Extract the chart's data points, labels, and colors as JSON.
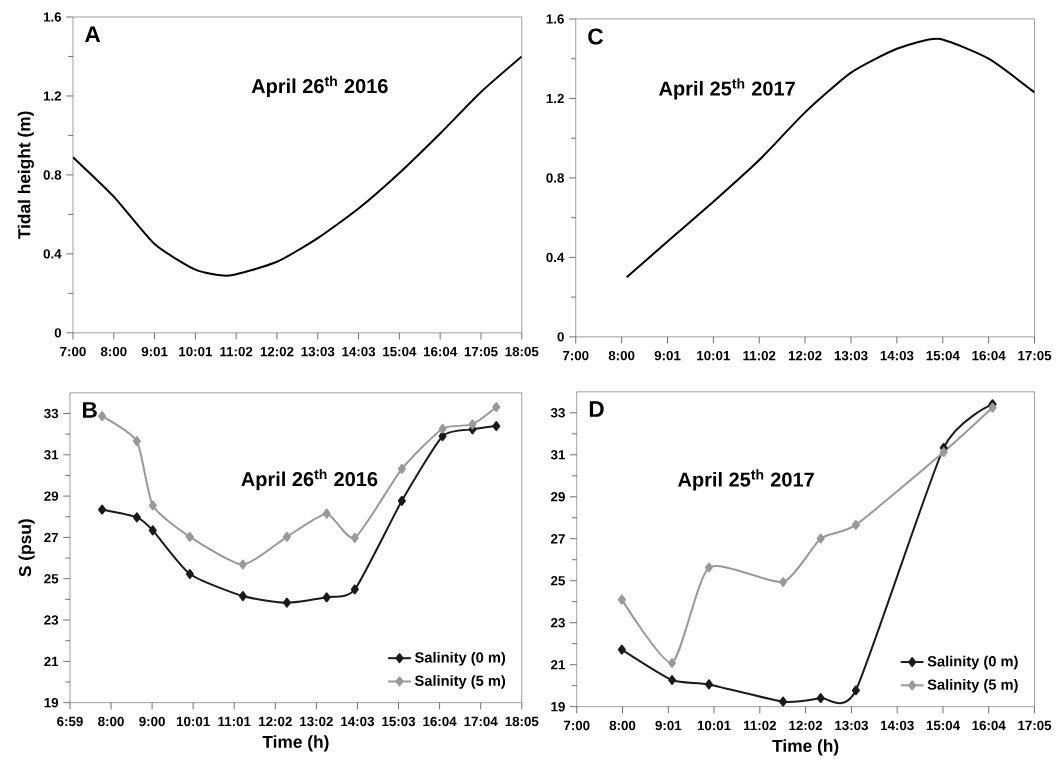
{
  "chart_data": [
    {
      "type": "line",
      "ylabel": "Tidal height (m)",
      "annotations": [
        "A",
        "April 26$^{th}$ 2016"
      ],
      "line_style": "solid",
      "xlim": [
        7,
        18.083
      ],
      "ylim": [
        0,
        1.6
      ],
      "xticks": [
        {
          "value": 7,
          "label": "7:00"
        },
        {
          "value": 8.008,
          "label": "8:00"
        },
        {
          "value": 9.015,
          "label": "9:01"
        },
        {
          "value": 10.023,
          "label": "10:01"
        },
        {
          "value": 11.03,
          "label": "11:02"
        },
        {
          "value": 12.038,
          "label": "12:02"
        },
        {
          "value": 13.045,
          "label": "13:03"
        },
        {
          "value": 14.053,
          "label": "14:03"
        },
        {
          "value": 15.061,
          "label": "15:04"
        },
        {
          "value": 16.068,
          "label": "16:04"
        },
        {
          "value": 17.076,
          "label": "17:05"
        },
        {
          "value": 18.083,
          "label": "18:05"
        }
      ],
      "yticks": [
        0,
        {
          "value": 0.2,
          "label": null
        },
        0.4,
        {
          "value": 0.6,
          "label": null
        },
        0.8,
        {
          "value": 1.0,
          "label": null
        },
        1.2,
        {
          "value": 1.4,
          "label": null
        },
        1.6
      ],
      "series": [
        {
          "color": "#000000",
          "x": [
            7,
            8.008,
            9.015,
            10.023,
            10.86,
            12.038,
            13.045,
            14.053,
            15.061,
            16.068,
            17.076,
            18.083
          ],
          "values": [
            0.89,
            0.69,
            0.45,
            0.32,
            0.29,
            0.36,
            0.48,
            0.63,
            0.81,
            1.01,
            1.22,
            1.4
          ]
        }
      ]
    },
    {
      "type": "line",
      "annotations": [
        "C",
        "April 25$^{th}$ 2017"
      ],
      "line_style": "solid",
      "xlim": [
        7,
        17.083
      ],
      "ylim": [
        0,
        1.6
      ],
      "xticks": [
        {
          "value": 7,
          "label": "7:00"
        },
        {
          "value": 8.008,
          "label": "8:00"
        },
        {
          "value": 9.017,
          "label": "9:01"
        },
        {
          "value": 10.024,
          "label": "10:01"
        },
        {
          "value": 11.033,
          "label": "11:02"
        },
        {
          "value": 12.04,
          "label": "12:02"
        },
        {
          "value": 13.05,
          "label": "13:03"
        },
        {
          "value": 14.058,
          "label": "14:03"
        },
        {
          "value": 15.067,
          "label": "15:04"
        },
        {
          "value": 16.074,
          "label": "16:04"
        },
        {
          "value": 17.083,
          "label": "17:05"
        }
      ],
      "yticks": [
        0,
        {
          "value": 0.2,
          "label": null
        },
        0.4,
        {
          "value": 0.6,
          "label": null
        },
        0.8,
        {
          "value": 1.0,
          "label": null
        },
        1.2,
        {
          "value": 1.4,
          "label": null
        },
        1.6
      ],
      "series": [
        {
          "color": "#000000",
          "x": [
            8.12,
            9.017,
            10.024,
            11.033,
            12.04,
            13.05,
            14.058,
            14.97,
            16.074,
            17.083
          ],
          "values": [
            0.3,
            0.48,
            0.68,
            0.89,
            1.13,
            1.33,
            1.45,
            1.5,
            1.4,
            1.23
          ]
        }
      ]
    },
    {
      "type": "line",
      "xlabel": "Time (h)",
      "ylabel": "S (psu)",
      "annotations": [
        "B",
        "April 26$^{th}$ 2016"
      ],
      "legend": "bottom right",
      "marker": "diamond",
      "line_style": "solid",
      "xlim": [
        6.983,
        18.083
      ],
      "ylim": [
        19,
        34
      ],
      "xticks": [
        {
          "value": 6.983,
          "label": "6:59"
        },
        {
          "value": 7.992,
          "label": "8:00"
        },
        {
          "value": 9.001,
          "label": "9:00"
        },
        {
          "value": 10.01,
          "label": "10:01"
        },
        {
          "value": 11.019,
          "label": "11:01"
        },
        {
          "value": 12.028,
          "label": "12:02"
        },
        {
          "value": 13.037,
          "label": "13:02"
        },
        {
          "value": 14.046,
          "label": "14:03"
        },
        {
          "value": 15.055,
          "label": "15:03"
        },
        {
          "value": 16.064,
          "label": "16:04"
        },
        {
          "value": 17.074,
          "label": "17:04"
        },
        {
          "value": 18.083,
          "label": "18:05"
        }
      ],
      "yticks": [
        19,
        {
          "value": 20,
          "label": null
        },
        21,
        {
          "value": 22,
          "label": null
        },
        23,
        {
          "value": 24,
          "label": null
        },
        25,
        {
          "value": 26,
          "label": null
        },
        27,
        {
          "value": 28,
          "label": null
        },
        29,
        {
          "value": 30,
          "label": null
        },
        31,
        {
          "value": 32,
          "label": null
        },
        33
      ],
      "series": [
        {
          "name": "Salinity (0 m)",
          "color": "#1a1a1a",
          "x": [
            7.772,
            8.627,
            9.018,
            9.929,
            11.231,
            12.313,
            13.29,
            13.981,
            15.137,
            16.138,
            16.872,
            17.457
          ],
          "values": [
            28.35,
            27.97,
            27.34,
            25.23,
            24.16,
            23.84,
            24.1,
            24.48,
            28.77,
            31.9,
            32.23,
            32.39
          ]
        },
        {
          "name": "Salinity (5 m)",
          "color": "#999999",
          "x": [
            7.772,
            8.627,
            9.018,
            9.929,
            11.231,
            12.313,
            13.29,
            13.981,
            15.137,
            16.138,
            16.872,
            17.457
          ],
          "values": [
            32.87,
            31.66,
            28.55,
            27.03,
            25.69,
            27.03,
            28.15,
            26.98,
            30.32,
            32.26,
            32.47,
            33.31
          ]
        }
      ]
    },
    {
      "type": "line",
      "xlabel": "Time (h)",
      "annotations": [
        "D",
        "April 25$^{th}$ 2017"
      ],
      "legend": "bottom right",
      "marker": "diamond",
      "line_style": "solid",
      "xlim": [
        7,
        17.083
      ],
      "ylim": [
        19,
        34
      ],
      "xticks": [
        {
          "value": 7,
          "label": "7:00"
        },
        {
          "value": 8.008,
          "label": "8:00"
        },
        {
          "value": 9.017,
          "label": "9:01"
        },
        {
          "value": 10.024,
          "label": "10:01"
        },
        {
          "value": 11.033,
          "label": "11:02"
        },
        {
          "value": 12.04,
          "label": "12:02"
        },
        {
          "value": 13.05,
          "label": "13:03"
        },
        {
          "value": 14.058,
          "label": "14:03"
        },
        {
          "value": 15.067,
          "label": "15:04"
        },
        {
          "value": 16.074,
          "label": "16:04"
        },
        {
          "value": 17.083,
          "label": "17:05"
        }
      ],
      "yticks": [
        19,
        {
          "value": 20,
          "label": null
        },
        21,
        {
          "value": 22,
          "label": null
        },
        23,
        {
          "value": 24,
          "label": null
        },
        25,
        {
          "value": 26,
          "label": null
        },
        27,
        {
          "value": 28,
          "label": null
        },
        29,
        {
          "value": 30,
          "label": null
        },
        31,
        {
          "value": 32,
          "label": null
        },
        33
      ],
      "series": [
        {
          "name": "Salinity (0 m)",
          "color": "#1a1a1a",
          "x": [
            7.993,
            9.099,
            9.912,
            11.545,
            12.373,
            13.148,
            15.082,
            16.158
          ],
          "values": [
            21.72,
            20.27,
            20.06,
            19.24,
            19.41,
            19.78,
            31.33,
            33.41
          ]
        },
        {
          "name": "Salinity (5 m)",
          "color": "#999999",
          "x": [
            7.993,
            9.099,
            9.912,
            11.545,
            12.373,
            13.148,
            15.082,
            16.158
          ],
          "values": [
            24.1,
            21.08,
            25.63,
            24.94,
            27.01,
            27.66,
            31.13,
            33.25
          ]
        }
      ]
    }
  ]
}
